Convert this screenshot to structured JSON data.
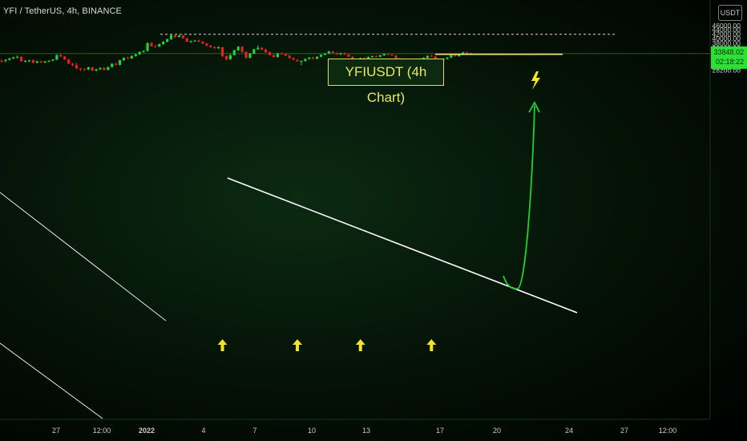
{
  "header": {
    "symbol_title": "YFI / TetherUS, 4h, BINANCE",
    "currency_button": "USDT"
  },
  "annotation": {
    "title": "YFIUSDT (4h Chart)"
  },
  "icons": {
    "signal": "lightning-bolt-icon",
    "support": "up-arrow-icon"
  },
  "colors": {
    "up": "#22d33a",
    "down": "#e5221c",
    "price_badge": "#2de036",
    "annotation_text": "#e6ea58",
    "resistance_line": "#f2e27a",
    "projection": "#1fd22f",
    "trendline": "#ffffff",
    "arrows": "#f3e12b"
  },
  "chart_data": {
    "type": "candlestick",
    "symbol": "YFIUSDT",
    "timeframe": "4h",
    "exchange": "BINANCE",
    "y_axis": {
      "ticks": [
        "46000.00",
        "44000.00",
        "42000.00",
        "40000.00",
        "38000.00",
        "36000.00",
        "34500.00",
        "32100.00",
        "31100.00",
        "30100.00",
        "29100.00",
        "28200.00"
      ],
      "tick_values": [
        46000,
        44000,
        42000,
        40000,
        38000,
        36000,
        34500,
        32100,
        31100,
        30100,
        29100,
        28200
      ],
      "scale": "log"
    },
    "x_axis": {
      "ticks": [
        "27",
        "12:00",
        "2022",
        "4",
        "7",
        "10",
        "13",
        "17",
        "20",
        "24",
        "27",
        "12:00"
      ]
    },
    "current_price": "33848.02",
    "countdown": "02:18:22",
    "last_price": 33848,
    "levels": {
      "target_dashed": 41900,
      "resistance": 33600
    },
    "trendlines": [
      {
        "name": "descending-resistance",
        "from_x_index": 52,
        "from_price": 37900,
        "to_x_index": 138,
        "to_price": 32100
      },
      {
        "name": "prior-channel-top",
        "from_x_index": 0,
        "from_price": 37200,
        "to_x_index": 40,
        "to_price": 31700
      },
      {
        "name": "prior-channel-bottom",
        "from_x_index": 0,
        "from_price": 30400,
        "to_x_index": 23,
        "to_price": 28000
      }
    ],
    "support_arrows_x_index": [
      56,
      75,
      91,
      109
    ],
    "ohlc": [
      [
        31300,
        31700,
        30600,
        31200
      ],
      [
        31200,
        31800,
        30700,
        31600
      ],
      [
        31600,
        32300,
        31300,
        32100
      ],
      [
        32100,
        32700,
        31800,
        32500
      ],
      [
        32500,
        33200,
        32000,
        32700
      ],
      [
        32700,
        32900,
        30900,
        31100
      ],
      [
        31100,
        31500,
        30700,
        31200
      ],
      [
        31200,
        31600,
        30700,
        31500
      ],
      [
        31500,
        31800,
        30400,
        30600
      ],
      [
        30600,
        31300,
        30400,
        31100
      ],
      [
        31100,
        31300,
        30500,
        30700
      ],
      [
        30700,
        31200,
        30400,
        31100
      ],
      [
        31100,
        31500,
        30700,
        31300
      ],
      [
        31300,
        31900,
        31100,
        31700
      ],
      [
        31700,
        33600,
        31400,
        33300
      ],
      [
        33300,
        33800,
        32600,
        32800
      ],
      [
        32800,
        33000,
        31600,
        31700
      ],
      [
        31700,
        32000,
        30200,
        30300
      ],
      [
        30300,
        30600,
        29400,
        29800
      ],
      [
        29800,
        30600,
        28600,
        28700
      ],
      [
        28700,
        29000,
        27900,
        28500
      ],
      [
        28500,
        28800,
        28000,
        28400
      ],
      [
        28400,
        29300,
        28200,
        29100
      ],
      [
        29100,
        29300,
        27900,
        28100
      ],
      [
        28100,
        28600,
        27700,
        28500
      ],
      [
        28500,
        29100,
        28200,
        28900
      ],
      [
        28900,
        29200,
        28100,
        28300
      ],
      [
        28300,
        29300,
        28100,
        29200
      ],
      [
        29200,
        30400,
        29000,
        30300
      ],
      [
        30300,
        30700,
        29700,
        29900
      ],
      [
        29900,
        31600,
        29700,
        31500
      ],
      [
        31500,
        32500,
        31200,
        32300
      ],
      [
        32300,
        32800,
        31900,
        32100
      ],
      [
        32100,
        33200,
        31900,
        33000
      ],
      [
        33000,
        33800,
        32700,
        33600
      ],
      [
        33600,
        34700,
        33300,
        34500
      ],
      [
        34500,
        35100,
        34200,
        34900
      ],
      [
        34900,
        38300,
        34600,
        38000
      ],
      [
        38000,
        38500,
        36500,
        36700
      ],
      [
        36700,
        37300,
        36200,
        36600
      ],
      [
        36600,
        37800,
        36300,
        37600
      ],
      [
        37600,
        38900,
        37200,
        38600
      ],
      [
        38600,
        39900,
        38300,
        39700
      ],
      [
        39700,
        41700,
        39400,
        41400
      ],
      [
        41400,
        41900,
        40200,
        40700
      ],
      [
        40700,
        41600,
        40400,
        41300
      ],
      [
        41300,
        41600,
        39800,
        40100
      ],
      [
        40100,
        40300,
        38400,
        38600
      ],
      [
        38600,
        39100,
        38000,
        38900
      ],
      [
        38900,
        39400,
        38500,
        39100
      ],
      [
        39100,
        39600,
        38400,
        38600
      ],
      [
        38600,
        38900,
        37600,
        37800
      ],
      [
        37800,
        38100,
        36700,
        36900
      ],
      [
        36900,
        37300,
        36100,
        36300
      ],
      [
        36300,
        36800,
        35700,
        35900
      ],
      [
        35900,
        36700,
        35600,
        36300
      ],
      [
        36300,
        36500,
        32500,
        32900
      ],
      [
        32900,
        33200,
        31300,
        31800
      ],
      [
        31800,
        33700,
        31600,
        33300
      ],
      [
        33300,
        35400,
        33100,
        35100
      ],
      [
        35100,
        36800,
        34800,
        36500
      ],
      [
        36500,
        36800,
        34200,
        34500
      ],
      [
        34500,
        34800,
        32000,
        32300
      ],
      [
        32300,
        34100,
        32100,
        33900
      ],
      [
        33900,
        35700,
        33600,
        35500
      ],
      [
        35500,
        37100,
        35200,
        36100
      ],
      [
        36100,
        36400,
        35100,
        35400
      ],
      [
        35400,
        35700,
        34200,
        34400
      ],
      [
        34400,
        34700,
        33100,
        33300
      ],
      [
        33300,
        33600,
        32400,
        32600
      ],
      [
        32600,
        34200,
        32400,
        33900
      ],
      [
        33900,
        34400,
        33400,
        33700
      ],
      [
        33700,
        34000,
        32900,
        33100
      ],
      [
        33100,
        33400,
        32000,
        32200
      ],
      [
        32200,
        32500,
        31400,
        31600
      ],
      [
        31600,
        31900,
        30900,
        31100
      ],
      [
        31100,
        31400,
        29700,
        31200
      ],
      [
        31200,
        32100,
        31000,
        31900
      ],
      [
        31900,
        32600,
        31700,
        32400
      ],
      [
        32400,
        32700,
        31800,
        32000
      ],
      [
        32000,
        32900,
        31800,
        32700
      ],
      [
        32700,
        33600,
        32500,
        33400
      ],
      [
        33400,
        34100,
        33200,
        33900
      ],
      [
        33900,
        34900,
        33700,
        34700
      ],
      [
        34700,
        34900,
        33900,
        34100
      ],
      [
        34100,
        34300,
        33400,
        33600
      ],
      [
        33600,
        34200,
        33300,
        34000
      ],
      [
        34000,
        34300,
        33300,
        33500
      ],
      [
        33500,
        33700,
        32500,
        32700
      ],
      [
        32700,
        32900,
        31300,
        31500
      ],
      [
        31500,
        32000,
        31300,
        31800
      ],
      [
        31800,
        32400,
        31600,
        32200
      ],
      [
        32200,
        32600,
        31900,
        32100
      ],
      [
        32100,
        32800,
        31900,
        32600
      ],
      [
        32600,
        33100,
        32300,
        32900
      ],
      [
        32900,
        33200,
        32500,
        32700
      ],
      [
        32700,
        33400,
        32500,
        33200
      ],
      [
        33200,
        33900,
        33000,
        33700
      ],
      [
        33700,
        34000,
        33200,
        33400
      ],
      [
        33400,
        33700,
        32900,
        33100
      ],
      [
        33100,
        33400,
        31900,
        32100
      ],
      [
        32100,
        32400,
        31700,
        31900
      ],
      [
        31900,
        32100,
        31300,
        31500
      ],
      [
        31500,
        31900,
        31200,
        31700
      ],
      [
        31700,
        32000,
        31300,
        31500
      ],
      [
        31500,
        31700,
        31000,
        31200
      ],
      [
        31200,
        32000,
        31000,
        31800
      ],
      [
        31800,
        32500,
        31600,
        32300
      ],
      [
        32300,
        33200,
        32100,
        33000
      ],
      [
        33000,
        33500,
        32600,
        32800
      ],
      [
        32800,
        33100,
        31700,
        31900
      ],
      [
        31900,
        32100,
        31300,
        31500
      ],
      [
        31500,
        32100,
        31300,
        31900
      ],
      [
        31900,
        32600,
        31700,
        32400
      ],
      [
        32400,
        33500,
        32200,
        33300
      ],
      [
        33300,
        33700,
        32700,
        32900
      ],
      [
        32900,
        33600,
        32700,
        33500
      ],
      [
        33500,
        34500,
        33300,
        34300
      ],
      [
        34300,
        34600,
        33600,
        33800
      ],
      [
        33800,
        34100,
        33500,
        33848
      ]
    ],
    "projection_path_target": 41900
  }
}
